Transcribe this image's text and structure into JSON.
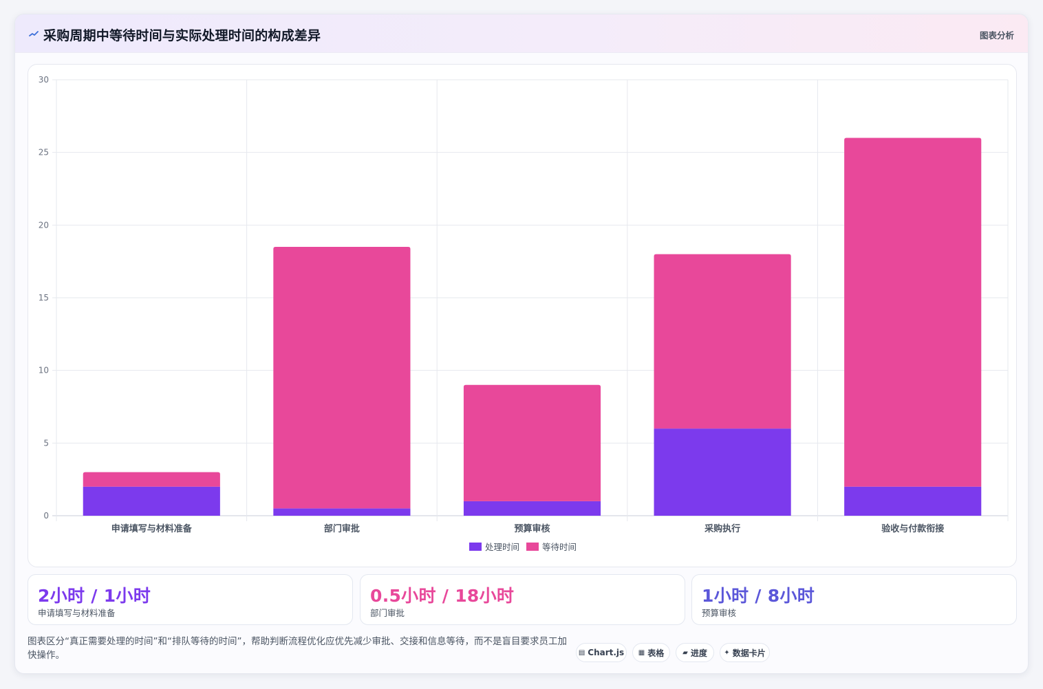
{
  "header": {
    "title": "采购周期中等待时间与实际处理时间的构成差异",
    "tag": "图表分析",
    "icon": "trend-line-icon"
  },
  "chart_data": {
    "type": "bar",
    "stacked": true,
    "categories": [
      "申请填写与材料准备",
      "部门审批",
      "预算审核",
      "采购执行",
      "验收与付款衔接"
    ],
    "series": [
      {
        "name": "处理时间",
        "color": "#7c3aed",
        "values": [
          2,
          0.5,
          1,
          6,
          2
        ]
      },
      {
        "name": "等待时间",
        "color": "#e8489a",
        "values": [
          1,
          18,
          8,
          12,
          24
        ]
      }
    ],
    "ylim": [
      0,
      30
    ],
    "yticks": [
      0,
      5,
      10,
      15,
      20,
      25,
      30
    ],
    "grid": true,
    "legend": "bottom"
  },
  "kpis": [
    {
      "value": "2小时 / 1小时",
      "label": "申请填写与材料准备",
      "color": "#7c3aed"
    },
    {
      "value": "0.5小时 / 18小时",
      "label": "部门审批",
      "color": "#e8489a"
    },
    {
      "value": "1小时 / 8小时",
      "label": "预算审核",
      "color": "#5b57d9"
    }
  ],
  "footnote": "图表区分“真正需要处理的时间”和“排队等待的时间”，帮助判断流程优化应优先减少审批、交接和信息等待，而不是盲目要求员工加快操作。",
  "chips": [
    {
      "label": "Chart.js",
      "icon": "chart-icon",
      "glyph": "▤"
    },
    {
      "label": "表格",
      "icon": "table-icon",
      "glyph": "▦"
    },
    {
      "label": "进度",
      "icon": "progress-icon",
      "glyph": "▰"
    },
    {
      "label": "数据卡片",
      "icon": "sparkle-icon",
      "glyph": "✦"
    }
  ]
}
